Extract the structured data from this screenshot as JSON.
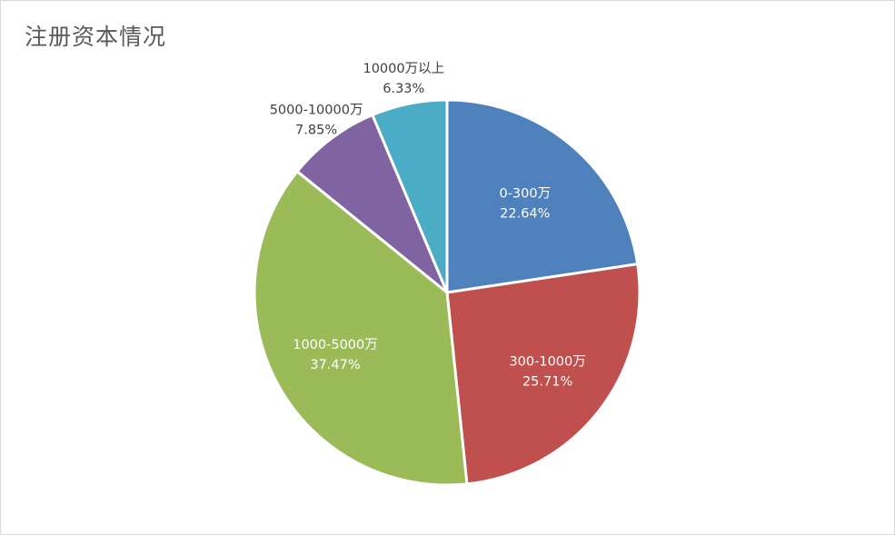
{
  "chart_data": {
    "type": "pie",
    "title": "注册资本情况",
    "slices": [
      {
        "name": "0-300万",
        "percent_label": "22.64%",
        "value": 22.64,
        "color": "#4F81BD"
      },
      {
        "name": "300-1000万",
        "percent_label": "25.71%",
        "value": 25.71,
        "color": "#C0504D"
      },
      {
        "name": "1000-5000万",
        "percent_label": "37.47%",
        "value": 37.47,
        "color": "#9BBB59"
      },
      {
        "name": "5000-10000万",
        "percent_label": "7.85%",
        "value": 7.85,
        "color": "#8064A2"
      },
      {
        "name": "10000万以上",
        "percent_label": "6.33%",
        "value": 6.33,
        "color": "#4BACC6"
      }
    ],
    "legend": "none"
  }
}
